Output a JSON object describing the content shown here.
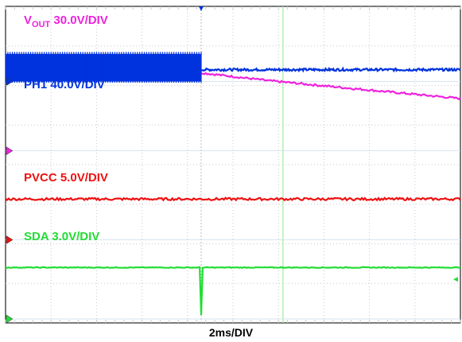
{
  "chart_data": {
    "type": "line",
    "title": "",
    "x_unit_label": "2ms/DIV",
    "x_divisions": 10,
    "y_divisions": 8,
    "grid": true,
    "trigger_time_div": 4.3,
    "cursor_time_div": 6.1,
    "colors": {
      "background": "#ffffff",
      "grid": "#c8c8d2",
      "vout": "#ee22dd",
      "ph1": "#0033dd",
      "pvcc": "#ee1111",
      "sda": "#22dd33",
      "cursor": "#99ee99",
      "border": "#222222"
    },
    "series": [
      {
        "key": "vout",
        "label_main": "V",
        "label_sub": "OUT",
        "label_rest": " 30.0V/DIV",
        "scale": "30.0V/DIV",
        "ground_div": 3.65,
        "points_t_div": [
          0,
          4.3,
          5.8,
          10
        ],
        "points_v_div": [
          2.0,
          1.97,
          1.77,
          1.32
        ],
        "noise_div": 0.025
      },
      {
        "key": "ph1",
        "label_main": "PH1 40.0V/DIV",
        "scale": "40.0V/DIV",
        "ground_div": 1.9,
        "switching_until_div": 4.3,
        "switch_low_div": 0.0,
        "switch_high_div": 0.7,
        "points_t_div": [
          4.3,
          10
        ],
        "points_v_div": [
          0.3,
          0.3
        ],
        "noise_div": 0.03
      },
      {
        "key": "pvcc",
        "label_main": "PVCC 5.0V/DIV",
        "scale": "5.0V/DIV",
        "ground_div": 5.9,
        "points_t_div": [
          0,
          10
        ],
        "points_v_div": [
          1.03,
          1.03
        ],
        "noise_div": 0.03
      },
      {
        "key": "sda",
        "label_main": "SDA 3.0V/DIV",
        "scale": "3.0V/DIV",
        "ground_div": 7.9,
        "points_t_div": [
          0,
          4.28,
          4.29,
          4.31,
          4.33,
          10
        ],
        "points_v_div": [
          1.3,
          1.3,
          0.1,
          0.1,
          1.3,
          1.3
        ],
        "noise_div": 0.01
      }
    ]
  }
}
